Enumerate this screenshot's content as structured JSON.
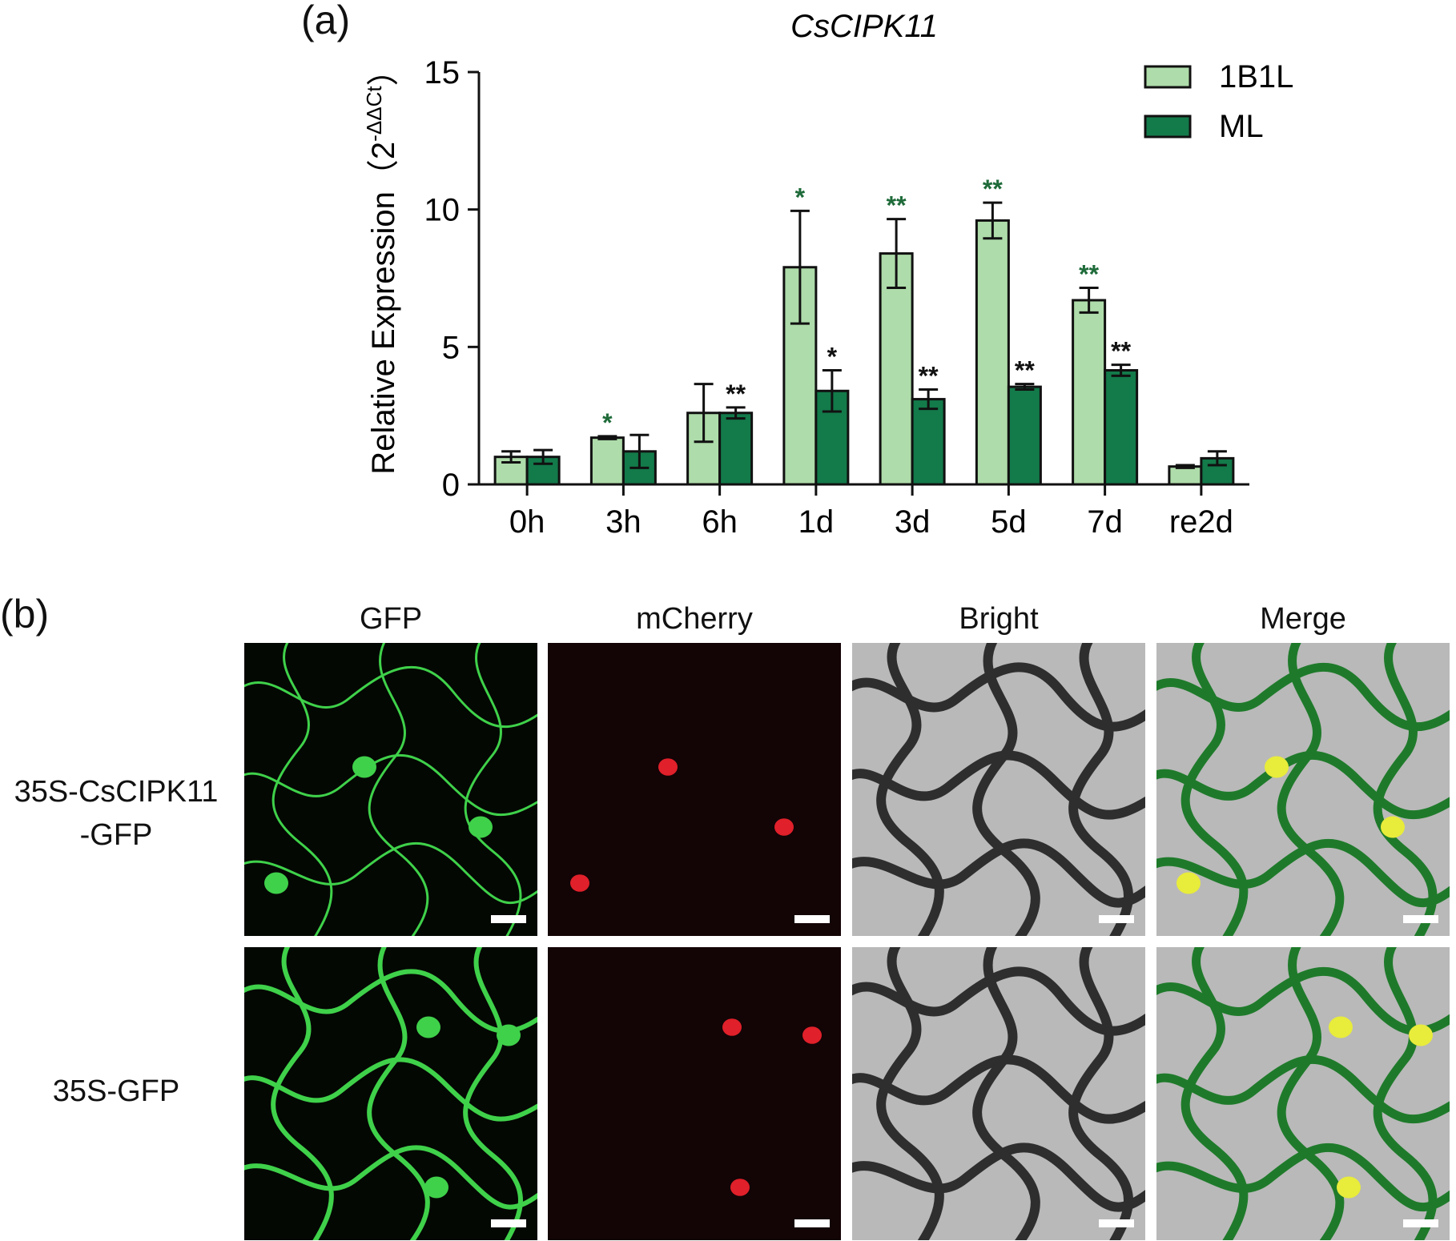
{
  "panel_a_label": "(a)",
  "panel_b_label": "(b)",
  "chart_data": {
    "type": "bar",
    "title": "CsCIPK11",
    "ylabel": "Relative Expression（2",
    "ylabel_sup": "-ΔΔCt",
    "ylabel_close": "）",
    "ylim": [
      0,
      15
    ],
    "yticks": [
      0,
      5,
      10,
      15
    ],
    "grid": false,
    "legend_position": "top-right",
    "categories": [
      "0h",
      "3h",
      "6h",
      "1d",
      "3d",
      "5d",
      "7d",
      "re2d"
    ],
    "series": [
      {
        "name": "1B1L",
        "color": "#aedcaa",
        "values": [
          1.0,
          1.7,
          2.6,
          7.9,
          8.4,
          9.6,
          6.7,
          0.65
        ],
        "errors": [
          0.2,
          0.05,
          1.05,
          2.05,
          1.25,
          0.65,
          0.45,
          0.05
        ],
        "significance": [
          "",
          "*",
          "",
          "*",
          "**",
          "**",
          "**",
          ""
        ],
        "significance_color": "#1f6b3a"
      },
      {
        "name": "ML",
        "color": "#137a4a",
        "values": [
          1.0,
          1.2,
          2.6,
          3.4,
          3.1,
          3.55,
          4.15,
          0.95
        ],
        "errors": [
          0.25,
          0.6,
          0.2,
          0.75,
          0.35,
          0.1,
          0.2,
          0.25
        ],
        "significance": [
          "",
          "",
          "**",
          "*",
          "**",
          "**",
          "**",
          ""
        ],
        "significance_color": "#111111"
      }
    ]
  },
  "panel_b": {
    "columns": [
      "GFP",
      "mCherry",
      "Bright",
      "Merge"
    ],
    "rows": [
      {
        "label_line1": "35S-CsCIPK11",
        "label_line2": "-GFP"
      },
      {
        "label_line1": "35S-GFP",
        "label_line2": ""
      }
    ],
    "colors": {
      "gfp_background": "#040803",
      "gfp_signal": "#3fd14a",
      "mcherry_background": "#130406",
      "mcherry_signal": "#e0202a",
      "bright_background": "#b9b9b9",
      "bright_wall": "#2e2e2e",
      "merge_wall": "#1e7a2a",
      "nucleus_merge": "#e8ec3a"
    }
  }
}
